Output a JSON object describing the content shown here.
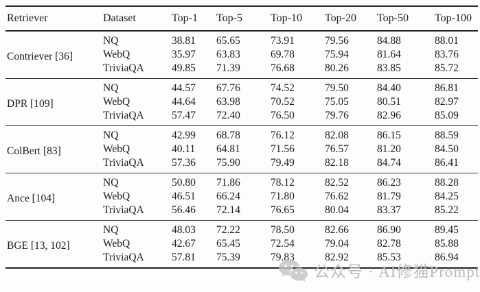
{
  "table": {
    "columns": [
      "Retriever",
      "Dataset",
      "Top-1",
      "Top-5",
      "Top-10",
      "Top-20",
      "Top-50",
      "Top-100"
    ],
    "groups": [
      {
        "retriever": "Contriever [36]",
        "rows": [
          {
            "dataset": "NQ",
            "values": [
              "38.81",
              "65.65",
              "73.91",
              "79.56",
              "84.88",
              "88.01"
            ]
          },
          {
            "dataset": "WebQ",
            "values": [
              "35.97",
              "63.83",
              "69.78",
              "75.94",
              "81.64",
              "83.76"
            ]
          },
          {
            "dataset": "TriviaQA",
            "values": [
              "49.85",
              "71.39",
              "76.68",
              "80.26",
              "83.85",
              "85.72"
            ]
          }
        ]
      },
      {
        "retriever": "DPR [109]",
        "rows": [
          {
            "dataset": "NQ",
            "values": [
              "44.57",
              "67.76",
              "74.52",
              "79.50",
              "84.40",
              "86.81"
            ]
          },
          {
            "dataset": "WebQ",
            "values": [
              "44.64",
              "63.98",
              "70.52",
              "75.05",
              "80.51",
              "82.97"
            ]
          },
          {
            "dataset": "TriviaQA",
            "values": [
              "57.47",
              "72.40",
              "76.50",
              "79.76",
              "82.96",
              "85.09"
            ]
          }
        ]
      },
      {
        "retriever": "ColBert [83]",
        "rows": [
          {
            "dataset": "NQ",
            "values": [
              "42.99",
              "68.78",
              "76.12",
              "82.08",
              "86.15",
              "88.59"
            ]
          },
          {
            "dataset": "WebQ",
            "values": [
              "40.11",
              "64.81",
              "71.56",
              "76.57",
              "81.20",
              "84.50"
            ]
          },
          {
            "dataset": "TriviaQA",
            "values": [
              "57.36",
              "75.90",
              "79.49",
              "82.18",
              "84.74",
              "86.41"
            ]
          }
        ]
      },
      {
        "retriever": "Ance [104]",
        "rows": [
          {
            "dataset": "NQ",
            "values": [
              "50.80",
              "71.86",
              "78.12",
              "82.52",
              "86.23",
              "88.28"
            ]
          },
          {
            "dataset": "WebQ",
            "values": [
              "46.51",
              "66.24",
              "71.80",
              "76.62",
              "81.79",
              "84.25"
            ]
          },
          {
            "dataset": "TriviaQA",
            "values": [
              "56.46",
              "72.14",
              "76.65",
              "80.04",
              "83.37",
              "85.22"
            ]
          }
        ]
      },
      {
        "retriever": "BGE [13, 102]",
        "rows": [
          {
            "dataset": "NQ",
            "values": [
              "48.03",
              "72.22",
              "78.50",
              "82.66",
              "86.90",
              "89.45"
            ]
          },
          {
            "dataset": "WebQ",
            "values": [
              "42.67",
              "65.45",
              "72.54",
              "79.04",
              "82.78",
              "85.88"
            ]
          },
          {
            "dataset": "TriviaQA",
            "values": [
              "57.81",
              "75.39",
              "79.83",
              "82.92",
              "85.53",
              "86.94"
            ]
          }
        ]
      }
    ]
  },
  "watermark": {
    "icon": "wechat-icon",
    "text": "公众号 · AI修猫Prompt"
  },
  "colors": {
    "text": "#1c1c1c",
    "rule": "#262626",
    "background": "#fdfdfd",
    "watermark": "#bcbcbc"
  }
}
